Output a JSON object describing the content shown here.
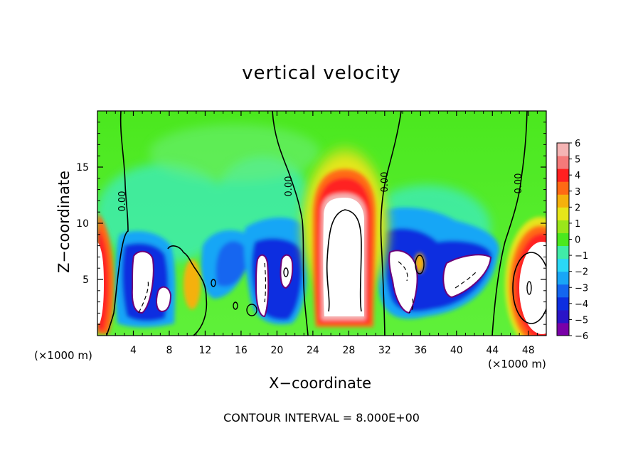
{
  "chart_data": {
    "type": "heatmap",
    "title": "vertical velocity",
    "xlabel": "X−coordinate",
    "ylabel": "Z−coordinate",
    "x_unit_label": "(×1000 m)",
    "x_unit_label_right": "(×1000 m)",
    "xlim": [
      0,
      50
    ],
    "ylim": [
      0,
      20
    ],
    "x_ticks": [
      4,
      8,
      12,
      16,
      20,
      24,
      28,
      32,
      36,
      40,
      44,
      48
    ],
    "y_ticks": [
      5,
      10,
      15
    ],
    "colorbar": {
      "ticks": [
        6,
        5,
        4,
        3,
        2,
        1,
        0,
        "−1",
        "−2",
        "−3",
        "−4",
        "−5",
        "−6"
      ],
      "range": [
        -6,
        6
      ],
      "colors": [
        "#7a00a8",
        "#2a14c8",
        "#0d2ee0",
        "#1466f0",
        "#19a6f6",
        "#2ad8f6",
        "#40eca8",
        "#4be81e",
        "#9ae61a",
        "#e6e61a",
        "#f5b10c",
        "#ff6a14",
        "#ff2020",
        "#f57a7a",
        "#f5b4b4"
      ]
    },
    "contour_labels": [
      "0.00",
      "0.00",
      "0.00",
      "0.00"
    ],
    "contour_interval_text": "CONTOUR INTERVAL = 8.000E+00",
    "field_description_values": {
      "background_w": 0.5,
      "updraft_centers_x": [
        28,
        49.5
      ],
      "downdraft_centers_x": [
        5.5,
        19,
        21,
        35,
        40
      ]
    }
  }
}
